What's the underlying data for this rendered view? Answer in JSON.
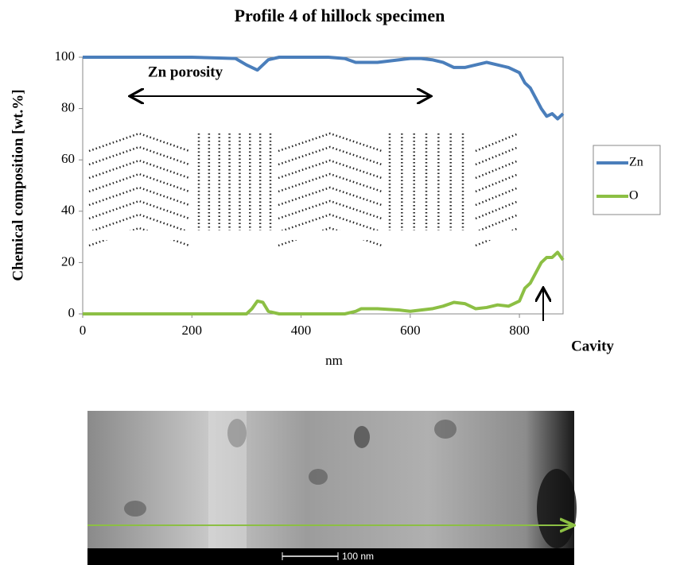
{
  "chart_data": {
    "type": "line",
    "title": "Profile 4 of  hillock specimen",
    "x_label": "nm",
    "y_label": "Chemical composition [wt.%]",
    "x": [
      0,
      100,
      200,
      280,
      300,
      310,
      320,
      330,
      340,
      360,
      400,
      450,
      480,
      500,
      510,
      540,
      580,
      600,
      620,
      640,
      660,
      680,
      700,
      720,
      740,
      760,
      780,
      800,
      810,
      820,
      830,
      840,
      850,
      860,
      870,
      880
    ],
    "series": [
      {
        "name": "Zn",
        "color": "#4a7ebb",
        "values": [
          100,
          100,
          100,
          99.5,
          97,
          96,
          95,
          97,
          99,
          100,
          100,
          100,
          99.5,
          98,
          98,
          98,
          99,
          99.5,
          99.5,
          99,
          98,
          96,
          96,
          97,
          98,
          97,
          96,
          94,
          90,
          88,
          84,
          80,
          77,
          78,
          76,
          78
        ]
      },
      {
        "name": "O",
        "color": "#8cbf44",
        "values": [
          0,
          0,
          0,
          0,
          0,
          2,
          5,
          4.5,
          1,
          0,
          0,
          0,
          0,
          1,
          2,
          2,
          1.5,
          1,
          1.5,
          2,
          3,
          4.5,
          4,
          2,
          2.5,
          3.5,
          3,
          5,
          10,
          12,
          16,
          20,
          22,
          22,
          24,
          21
        ]
      }
    ],
    "xlim": [
      0,
      880
    ],
    "xticks": [
      0,
      200,
      400,
      600,
      800
    ],
    "ylim": [
      0,
      100
    ],
    "yticks": [
      0,
      20,
      40,
      60,
      80,
      100
    ],
    "annotations": [
      "Zn porosity",
      "Cavity"
    ],
    "image_scale_label": "100 nm"
  }
}
